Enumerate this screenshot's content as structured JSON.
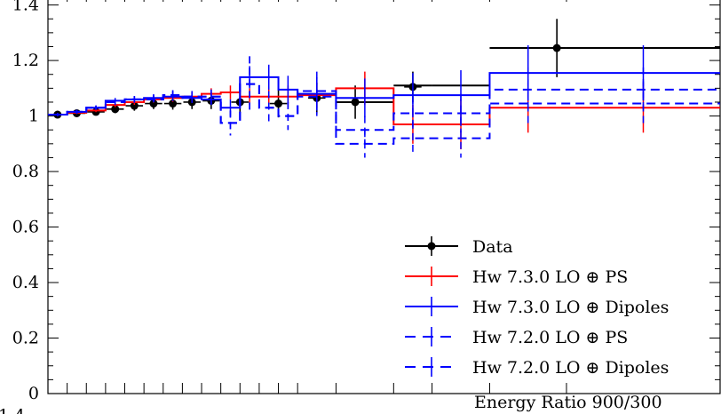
{
  "chart_data": {
    "type": "line",
    "title": "",
    "xlabel": "",
    "ylabel": "",
    "ylim": [
      0,
      1.45
    ],
    "yticks": [
      {
        "value": 0,
        "label": "0"
      },
      {
        "value": 0.2,
        "label": "0.2"
      },
      {
        "value": 0.4,
        "label": "0.4"
      },
      {
        "value": 0.6,
        "label": "0.6"
      },
      {
        "value": 0.8,
        "label": "0.8"
      },
      {
        "value": 1.0,
        "label": "1"
      },
      {
        "value": 1.2,
        "label": "1.2"
      },
      {
        "value": 1.4,
        "label": "1.4"
      }
    ],
    "bin_edges": [
      0,
      1,
      2,
      3,
      4,
      5,
      6,
      7,
      8,
      9,
      10,
      11,
      12,
      13,
      15,
      18,
      20,
      23,
      27,
      35
    ],
    "series": [
      {
        "name": "Data",
        "color": "#000000",
        "style": "solid",
        "marker": "dot",
        "values": [
          1.005,
          1.01,
          1.015,
          1.025,
          1.037,
          1.045,
          1.045,
          1.05,
          1.055,
          1.055,
          1.05,
          1.045,
          1.04,
          1.065,
          1.05,
          1.11,
          1.11,
          1.245,
          1.245
        ],
        "errors": [
          0.01,
          0.01,
          0.012,
          0.015,
          0.018,
          0.02,
          0.022,
          0.025,
          0.03,
          0.035,
          0.04,
          0.045,
          0.05,
          0.055,
          0.06,
          0.05,
          0.05,
          0.1,
          0.1
        ],
        "points": [
          {
            "x": 0.5,
            "y": 1.005,
            "err": 0.01
          },
          {
            "x": 1.5,
            "y": 1.01,
            "err": 0.01
          },
          {
            "x": 2.5,
            "y": 1.015,
            "err": 0.012
          },
          {
            "x": 3.5,
            "y": 1.025,
            "err": 0.015
          },
          {
            "x": 4.5,
            "y": 1.037,
            "err": 0.018
          },
          {
            "x": 5.5,
            "y": 1.045,
            "err": 0.02
          },
          {
            "x": 6.5,
            "y": 1.045,
            "err": 0.022
          },
          {
            "x": 7.5,
            "y": 1.05,
            "err": 0.025
          },
          {
            "x": 8.5,
            "y": 1.055,
            "err": 0.03
          },
          {
            "x": 10.0,
            "y": 1.05,
            "err": 0.04
          },
          {
            "x": 12.0,
            "y": 1.045,
            "err": 0.05
          },
          {
            "x": 14.0,
            "y": 1.065,
            "err": 0.055
          },
          {
            "x": 16.0,
            "y": 1.05,
            "err": 0.06
          },
          {
            "x": 19.0,
            "y": 1.105,
            "err": 0.055
          },
          {
            "x": 26.5,
            "y": 1.245,
            "err": 0.105
          }
        ]
      },
      {
        "name": "Hw 7.3.0 LO ⊕ PS",
        "color": "#ff0000",
        "style": "solid",
        "values": [
          1.005,
          1.012,
          1.02,
          1.04,
          1.05,
          1.06,
          1.065,
          1.07,
          1.08,
          1.085,
          1.07,
          1.07,
          1.07,
          1.075,
          1.1,
          0.97,
          0.97,
          1.03,
          1.03
        ],
        "errors": [
          0.005,
          0.005,
          0.006,
          0.008,
          0.01,
          0.012,
          0.014,
          0.016,
          0.02,
          0.025,
          0.03,
          0.035,
          0.04,
          0.045,
          0.06,
          0.07,
          0.09,
          0.09,
          0.09
        ]
      },
      {
        "name": "Hw 7.3.0 LO ⊕ Dipoles",
        "color": "#0000ff",
        "style": "solid",
        "values": [
          1.005,
          1.015,
          1.03,
          1.055,
          1.06,
          1.065,
          1.07,
          1.065,
          1.06,
          1.03,
          1.14,
          1.14,
          1.095,
          1.08,
          1.065,
          1.075,
          1.075,
          1.155,
          1.155
        ],
        "errors": [
          0.005,
          0.006,
          0.007,
          0.01,
          0.012,
          0.014,
          0.016,
          0.018,
          0.02,
          0.03,
          0.04,
          0.045,
          0.05,
          0.06,
          0.07,
          0.08,
          0.09,
          0.1,
          0.1
        ]
      },
      {
        "name": "Hw 7.2.0 LO ⊕ PS",
        "color": "#0000ff",
        "style": "dashed",
        "values": [
          1.005,
          1.015,
          1.03,
          1.05,
          1.06,
          1.06,
          1.075,
          1.07,
          1.07,
          0.975,
          1.115,
          1.03,
          1.0,
          1.09,
          0.9,
          0.92,
          0.92,
          1.095,
          1.095
        ],
        "errors": [
          0.006,
          0.007,
          0.008,
          0.01,
          0.012,
          0.015,
          0.018,
          0.02,
          0.025,
          0.045,
          0.1,
          0.06,
          0.05,
          0.07,
          0.05,
          0.06,
          0.07,
          0.08,
          0.08
        ]
      },
      {
        "name": "Hw 7.2.0 LO ⊕ Dipoles",
        "color": "#0000ff",
        "style": "dashed",
        "values": [
          1.005,
          1.015,
          1.03,
          1.05,
          1.06,
          1.06,
          1.075,
          1.07,
          1.07,
          0.975,
          1.115,
          1.03,
          1.0,
          1.07,
          0.95,
          1.01,
          1.01,
          1.045,
          1.045
        ],
        "errors": [
          0.006,
          0.007,
          0.008,
          0.01,
          0.012,
          0.015,
          0.018,
          0.02,
          0.025,
          0.045,
          0.1,
          0.06,
          0.05,
          0.07,
          0.05,
          0.06,
          0.07,
          0.08,
          0.08
        ]
      }
    ],
    "legend_position": "bottom-right"
  },
  "lower_panel_label": "Energy Ratio 900/300",
  "lower_panel_tick": "1.4"
}
